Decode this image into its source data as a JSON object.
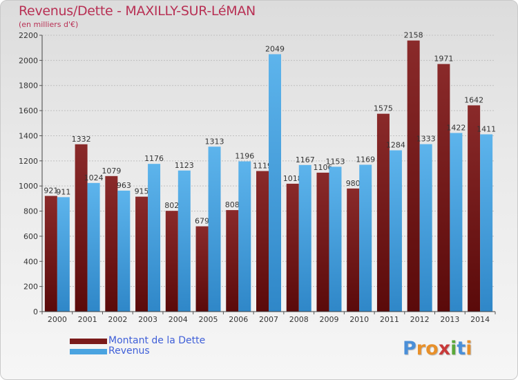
{
  "title": "Revenus/Dette - MAXILLY-SUR-LéMAN",
  "subtitle": "(en milliers d'€)",
  "logo": {
    "letters": [
      "P",
      "r",
      "o",
      "x",
      "i",
      "t",
      "i"
    ],
    "colors": [
      "#4a8fd8",
      "#e8902a",
      "#e8902a",
      "#c83a3a",
      "#5aa83a",
      "#4a8fd8",
      "#e8902a"
    ]
  },
  "legend": {
    "items": [
      {
        "label": "Montant de la Dette",
        "color": "#7a1a1a"
      },
      {
        "label": "Revenus",
        "color": "#4aa3e0"
      }
    ]
  },
  "chart_data": {
    "type": "bar",
    "categories": [
      "2000",
      "2001",
      "2002",
      "2003",
      "2004",
      "2005",
      "2006",
      "2007",
      "2008",
      "2009",
      "2010",
      "2011",
      "2012",
      "2013",
      "2014"
    ],
    "series": [
      {
        "name": "Montant de la Dette",
        "color": "#7a1a1a",
        "values": [
          921,
          1332,
          1079,
          915,
          802,
          679,
          808,
          1119,
          1018,
          1106,
          980,
          1575,
          2158,
          1971,
          1642
        ],
        "labels": [
          "921",
          "1332",
          "1079",
          "915",
          "802",
          "679",
          "808",
          "1119",
          "1018",
          "1106",
          "980",
          "1575",
          "2158",
          "1971",
          "1642"
        ]
      },
      {
        "name": "Revenus",
        "color": "#4aa3e0",
        "values": [
          911,
          1024,
          963,
          1176,
          1123,
          1313,
          1196,
          2049,
          1167,
          1153,
          1169,
          1284,
          1333,
          1422,
          1411
        ],
        "labels": [
          "911",
          "1024",
          "963",
          "1176",
          "1123",
          "1313",
          "1196",
          "2049",
          "1167",
          "1153",
          "1169",
          "1284",
          "1333",
          "1422",
          "1411"
        ]
      }
    ],
    "yticks": [
      "0",
      "200",
      "400",
      "600",
      "800",
      "1000",
      "1200",
      "1400",
      "1600",
      "1800",
      "2000",
      "2200"
    ],
    "ylim": [
      0,
      2200
    ],
    "grid": true
  }
}
